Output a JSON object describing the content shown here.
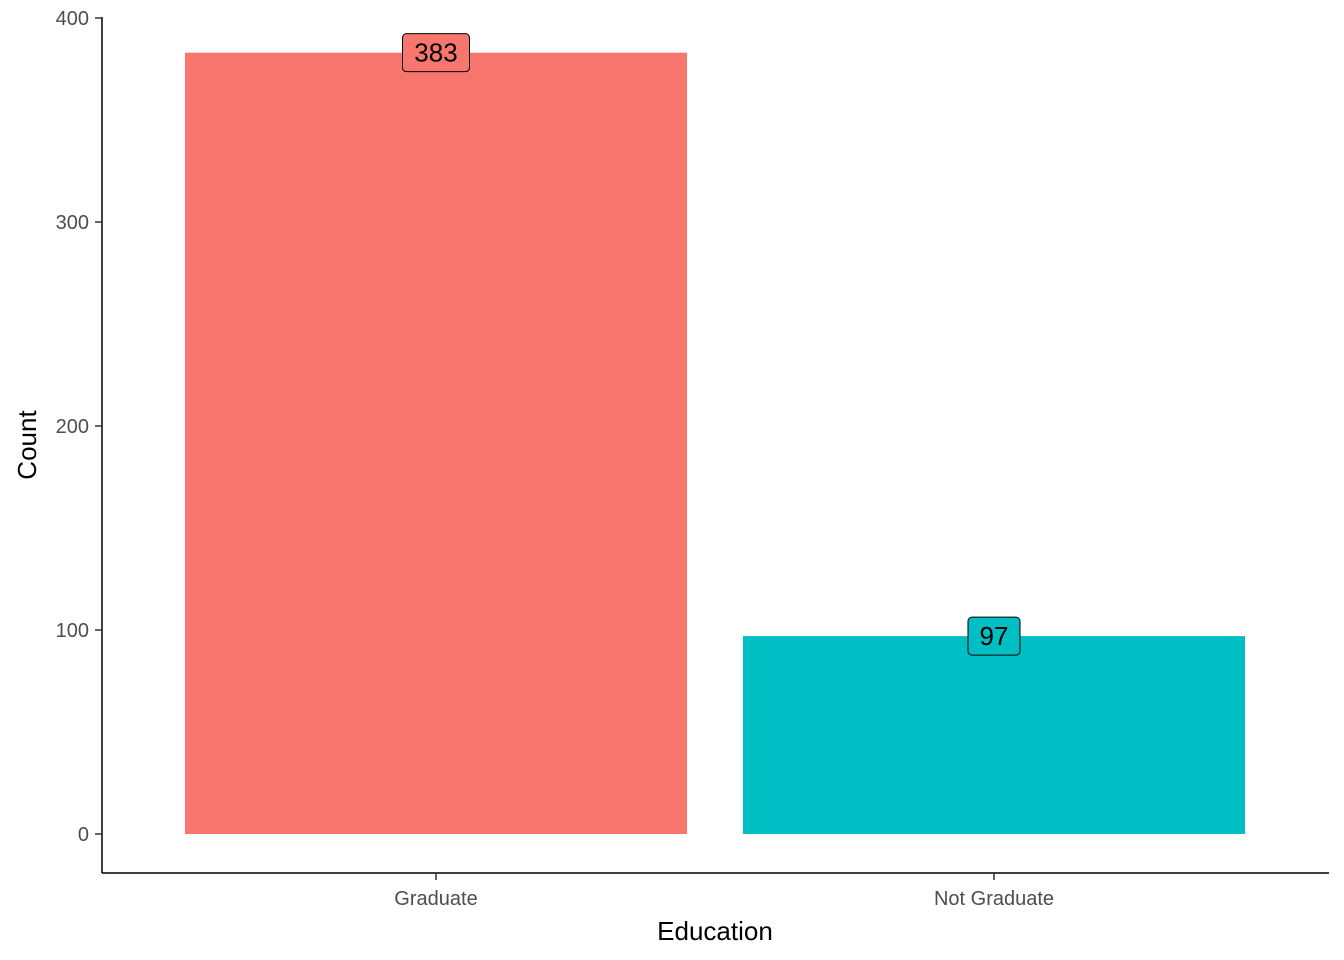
{
  "chart_data": {
    "type": "bar",
    "title": "",
    "xlabel": "Education",
    "ylabel": "Count",
    "categories": [
      "Graduate",
      "Not Graduate"
    ],
    "values": [
      383,
      97
    ],
    "data_labels": [
      "383",
      "97"
    ],
    "colors": [
      "#F8766D",
      "#00BFC4"
    ],
    "ylim": [
      0,
      400
    ],
    "yticks": [
      0,
      100,
      200,
      300,
      400
    ],
    "ytick_labels": [
      "0",
      "100",
      "200",
      "300",
      "400"
    ],
    "grid": false,
    "legend": "none"
  }
}
